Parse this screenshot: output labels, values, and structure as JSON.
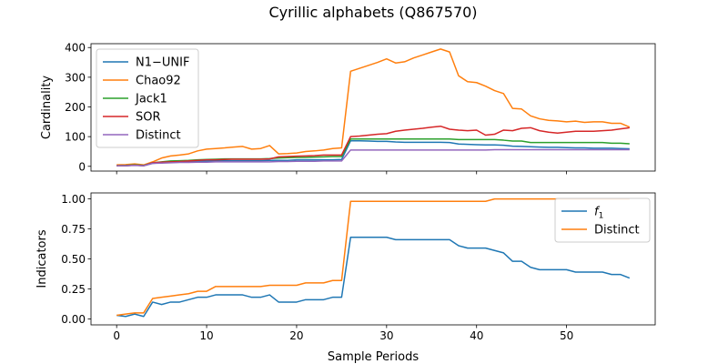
{
  "figure": {
    "title": "Cyrillic alphabets (Q867570)"
  },
  "chart_data": [
    {
      "type": "line",
      "ylabel": "Cardinality",
      "xlabel": "",
      "xlim": [
        -2.85,
        59.85
      ],
      "ylim": [
        -16,
        413
      ],
      "xticks": [
        0,
        10,
        20,
        30,
        40,
        50
      ],
      "yticks": [
        0,
        100,
        200,
        300,
        400
      ],
      "legend": "top-left",
      "x": [
        0,
        1,
        2,
        3,
        4,
        5,
        6,
        7,
        8,
        9,
        10,
        11,
        12,
        13,
        14,
        15,
        16,
        17,
        18,
        19,
        20,
        21,
        22,
        23,
        24,
        25,
        26,
        27,
        28,
        29,
        30,
        31,
        32,
        33,
        34,
        35,
        36,
        37,
        38,
        39,
        40,
        41,
        42,
        43,
        44,
        45,
        46,
        47,
        48,
        49,
        50,
        51,
        52,
        53,
        54,
        55,
        56,
        57
      ],
      "series": [
        {
          "name": "N1−UNIF",
          "color": "#1f77b4",
          "values": [
            2,
            2,
            4,
            2,
            10,
            12,
            13,
            14,
            15,
            17,
            18,
            19,
            19,
            19,
            19,
            19,
            19,
            20,
            20,
            20,
            22,
            22,
            22,
            22,
            22,
            23,
            86,
            86,
            85,
            84,
            84,
            82,
            81,
            81,
            81,
            81,
            81,
            80,
            75,
            74,
            73,
            72,
            72,
            71,
            68,
            67,
            66,
            65,
            64,
            64,
            63,
            62,
            62,
            61,
            61,
            61,
            60,
            59
          ]
        },
        {
          "name": "Chao92",
          "color": "#ff7f0e",
          "values": [
            5,
            6,
            8,
            5,
            15,
            28,
            35,
            38,
            42,
            52,
            58,
            60,
            62,
            65,
            67,
            58,
            60,
            70,
            42,
            43,
            45,
            50,
            52,
            55,
            60,
            62,
            320,
            330,
            340,
            350,
            362,
            348,
            352,
            365,
            375,
            385,
            395,
            385,
            305,
            285,
            282,
            270,
            255,
            245,
            195,
            193,
            170,
            160,
            155,
            153,
            150,
            152,
            148,
            150,
            150,
            145,
            145,
            132
          ]
        },
        {
          "name": "Jack1",
          "color": "#2ca02c",
          "values": [
            2,
            3,
            5,
            3,
            12,
            15,
            18,
            19,
            20,
            22,
            23,
            24,
            25,
            25,
            25,
            25,
            25,
            26,
            28,
            29,
            30,
            30,
            31,
            32,
            33,
            33,
            92,
            92,
            92,
            92,
            92,
            92,
            92,
            92,
            92,
            92,
            92,
            92,
            90,
            90,
            90,
            90,
            90,
            88,
            85,
            85,
            80,
            80,
            80,
            80,
            80,
            80,
            80,
            80,
            80,
            78,
            78,
            76
          ]
        },
        {
          "name": "SOR",
          "color": "#d62728",
          "values": [
            2,
            2,
            4,
            2,
            12,
            14,
            15,
            16,
            18,
            20,
            22,
            22,
            23,
            24,
            24,
            24,
            24,
            25,
            32,
            33,
            34,
            35,
            36,
            38,
            38,
            38,
            100,
            102,
            105,
            108,
            110,
            118,
            122,
            125,
            128,
            132,
            135,
            125,
            122,
            120,
            122,
            105,
            108,
            122,
            120,
            128,
            130,
            120,
            115,
            112,
            115,
            118,
            118,
            118,
            120,
            122,
            126,
            130
          ]
        },
        {
          "name": "Distinct",
          "color": "#9467bd",
          "values": [
            2,
            2,
            3,
            2,
            10,
            11,
            12,
            13,
            13,
            14,
            14,
            15,
            15,
            15,
            15,
            15,
            15,
            15,
            16,
            16,
            17,
            17,
            17,
            18,
            18,
            18,
            55,
            55,
            55,
            55,
            55,
            55,
            55,
            55,
            55,
            55,
            55,
            55,
            55,
            55,
            55,
            55,
            56,
            56,
            56,
            56,
            56,
            56,
            56,
            56,
            56,
            56,
            56,
            56,
            56,
            56,
            56,
            56
          ]
        }
      ]
    },
    {
      "type": "line",
      "ylabel": "Indicators",
      "xlabel": "Sample Periods",
      "xlim": [
        -2.85,
        59.85
      ],
      "ylim": [
        -0.05,
        1.05
      ],
      "xticks": [
        0,
        10,
        20,
        30,
        40,
        50
      ],
      "ytick_labels": [
        "0.00",
        "0.25",
        "0.50",
        "0.75",
        "1.00"
      ],
      "yticks": [
        0,
        0.25,
        0.5,
        0.75,
        1.0
      ],
      "legend": "top-right",
      "x": [
        0,
        1,
        2,
        3,
        4,
        5,
        6,
        7,
        8,
        9,
        10,
        11,
        12,
        13,
        14,
        15,
        16,
        17,
        18,
        19,
        20,
        21,
        22,
        23,
        24,
        25,
        26,
        27,
        28,
        29,
        30,
        31,
        32,
        33,
        34,
        35,
        36,
        37,
        38,
        39,
        40,
        41,
        42,
        43,
        44,
        45,
        46,
        47,
        48,
        49,
        50,
        51,
        52,
        53,
        54,
        55,
        56,
        57
      ],
      "series": [
        {
          "name": "f",
          "name_sub": "1",
          "color": "#1f77b4",
          "values": [
            0.03,
            0.02,
            0.04,
            0.02,
            0.14,
            0.12,
            0.14,
            0.14,
            0.16,
            0.18,
            0.18,
            0.2,
            0.2,
            0.2,
            0.2,
            0.18,
            0.18,
            0.2,
            0.14,
            0.14,
            0.14,
            0.16,
            0.16,
            0.16,
            0.18,
            0.18,
            0.68,
            0.68,
            0.68,
            0.68,
            0.68,
            0.66,
            0.66,
            0.66,
            0.66,
            0.66,
            0.66,
            0.66,
            0.61,
            0.59,
            0.59,
            0.59,
            0.57,
            0.55,
            0.48,
            0.48,
            0.43,
            0.41,
            0.41,
            0.41,
            0.41,
            0.39,
            0.39,
            0.39,
            0.39,
            0.37,
            0.37,
            0.34
          ]
        },
        {
          "name": "Distinct",
          "color": "#ff7f0e",
          "values": [
            0.03,
            0.04,
            0.05,
            0.05,
            0.17,
            0.18,
            0.19,
            0.2,
            0.21,
            0.23,
            0.23,
            0.27,
            0.27,
            0.27,
            0.27,
            0.27,
            0.27,
            0.28,
            0.28,
            0.28,
            0.28,
            0.3,
            0.3,
            0.3,
            0.32,
            0.32,
            0.98,
            0.98,
            0.98,
            0.98,
            0.98,
            0.98,
            0.98,
            0.98,
            0.98,
            0.98,
            0.98,
            0.98,
            0.98,
            0.98,
            0.98,
            0.98,
            1.0,
            1.0,
            1.0,
            1.0,
            1.0,
            1.0,
            1.0,
            1.0,
            1.0,
            1.0,
            1.0,
            1.0,
            1.0,
            1.0,
            1.0,
            1.0
          ]
        }
      ]
    }
  ]
}
